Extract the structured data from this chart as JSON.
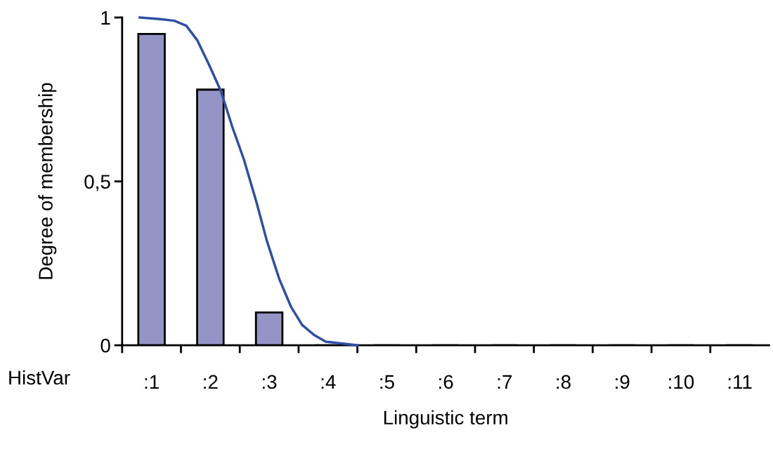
{
  "chart_data": {
    "type": "bar",
    "xlabel": "Linguistic term",
    "ylabel": "Degree of membership",
    "xlim": [
      0.5,
      11.5
    ],
    "xticks": [
      {
        "value": 0.5,
        "label": null
      },
      {
        "value": 1,
        "label": ":1"
      },
      {
        "value": 1.5,
        "label": null
      },
      {
        "value": 2,
        "label": ":2"
      },
      {
        "value": 2.5,
        "label": null
      },
      {
        "value": 3,
        "label": ":3"
      },
      {
        "value": 3.5,
        "label": null
      },
      {
        "value": 4,
        "label": ":4"
      },
      {
        "value": 4.5,
        "label": null
      },
      {
        "value": 5,
        "label": ":5"
      },
      {
        "value": 5.5,
        "label": null
      },
      {
        "value": 6,
        "label": ":6"
      },
      {
        "value": 6.5,
        "label": null
      },
      {
        "value": 7,
        "label": ":7"
      },
      {
        "value": 7.5,
        "label": null
      },
      {
        "value": 8,
        "label": ":8"
      },
      {
        "value": 8.5,
        "label": null
      },
      {
        "value": 9,
        "label": ":9"
      },
      {
        "value": 9.5,
        "label": null
      },
      {
        "value": 10,
        "label": ":10"
      },
      {
        "value": 10.5,
        "label": null
      },
      {
        "value": 11,
        "label": ":11"
      }
    ],
    "ylim": [
      0,
      1
    ],
    "yticks": [
      0,
      {
        "value": 0.5,
        "label": "0,5"
      },
      1
    ],
    "grid": false,
    "legend": false,
    "series": [
      {
        "color": "#9494c6",
        "x": [
          1,
          2,
          3,
          4,
          5,
          6,
          7,
          8,
          9,
          10,
          11
        ],
        "values": [
          0.95,
          0.78,
          0.1,
          0,
          0,
          0,
          0,
          0,
          0,
          0,
          0
        ]
      },
      {
        "type": "line",
        "color": "#2e4fa6",
        "x": [
          0.8,
          1.15,
          1.39,
          1.59,
          1.78,
          1.98,
          2.18,
          2.37,
          2.57,
          2.78,
          2.96,
          3.17,
          3.37,
          3.56,
          3.76,
          3.96,
          4.5
        ],
        "values": [
          1.0,
          0.995,
          0.99,
          0.975,
          0.93,
          0.855,
          0.775,
          0.668,
          0.567,
          0.439,
          0.319,
          0.203,
          0.118,
          0.062,
          0.032,
          0.011,
          0
        ]
      }
    ],
    "annotations": [
      "HistVar"
    ]
  }
}
